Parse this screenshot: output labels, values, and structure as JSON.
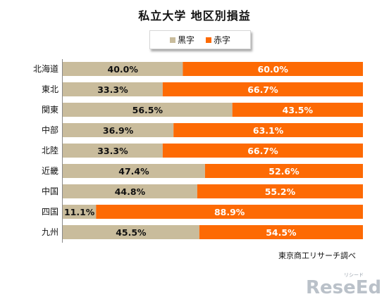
{
  "chart_data": {
    "type": "bar",
    "stacked": true,
    "orientation": "horizontal",
    "title": "私立大学 地区別損益",
    "categories": [
      "北海道",
      "東北",
      "関東",
      "中部",
      "北陸",
      "近畿",
      "中国",
      "四国",
      "九州"
    ],
    "series": [
      {
        "name": "黒字",
        "color": "#c9bc9c",
        "values": [
          40.0,
          33.3,
          56.5,
          36.9,
          33.3,
          47.4,
          44.8,
          11.1,
          45.5
        ],
        "labels": [
          "40.0%",
          "33.3%",
          "56.5%",
          "36.9%",
          "33.3%",
          "47.4%",
          "44.8%",
          "11.1%",
          "45.5%"
        ]
      },
      {
        "name": "赤字",
        "color": "#fd6a04",
        "values": [
          60.0,
          66.7,
          43.5,
          63.1,
          66.7,
          52.6,
          55.2,
          88.9,
          54.5
        ],
        "labels": [
          "60.0%",
          "66.7%",
          "43.5%",
          "63.1%",
          "66.7%",
          "52.6%",
          "55.2%",
          "88.9%",
          "54.5%"
        ]
      }
    ],
    "xlim": [
      0,
      100
    ],
    "grid": false,
    "legend_position": "top-center"
  },
  "source_note": "東京商工リサーチ調べ",
  "watermark": {
    "main": "ReseEd",
    "small": "リシード"
  }
}
